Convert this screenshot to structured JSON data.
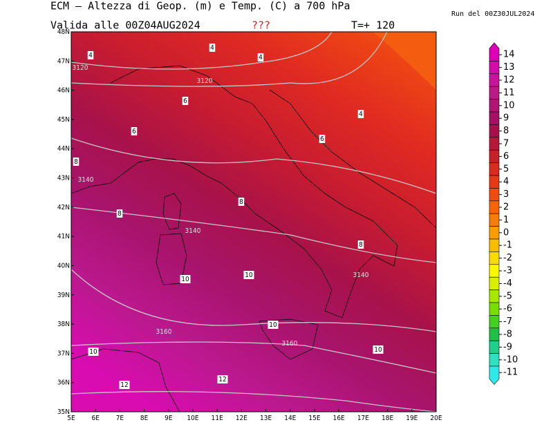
{
  "header": {
    "title": "ECM — Altezza di Geop. (m) e Temp. (C) a 700 hPa",
    "valid": "Valida alle 00Z04AUG2024",
    "flag": "???",
    "step": "T=+ 120",
    "run": "Run del 00Z30JUL2024"
  },
  "map": {
    "lat_labels": [
      "48N",
      "47N",
      "46N",
      "45N",
      "44N",
      "43N",
      "42N",
      "41N",
      "40N",
      "39N",
      "38N",
      "37N",
      "36N",
      "35N"
    ],
    "lon_labels": [
      "5E",
      "6E",
      "7E",
      "8E",
      "9E",
      "10E",
      "11E",
      "12E",
      "13E",
      "14E",
      "15E",
      "16E",
      "17E",
      "18E",
      "19E",
      "20E"
    ],
    "contour_labels": [
      "4",
      "3120",
      "4",
      "4",
      "3120",
      "6",
      "4",
      "6",
      "6",
      "8",
      "3140",
      "8",
      "8",
      "3140",
      "8",
      "10",
      "10",
      "3140",
      "10",
      "3160",
      "3160",
      "10",
      "10",
      "12",
      "12"
    ]
  },
  "colorbar": {
    "levels": [
      14,
      13,
      12,
      11,
      10,
      9,
      8,
      7,
      6,
      5,
      4,
      3,
      2,
      1,
      0,
      -1,
      -2,
      -3,
      -4,
      -5,
      -6,
      -7,
      -8,
      -9,
      -10,
      -11
    ],
    "colors": [
      "#e000b8",
      "#d40cac",
      "#c8149c",
      "#bc1888",
      "#b01474",
      "#a41064",
      "#a8104c",
      "#b81838",
      "#c82028",
      "#d82c20",
      "#e83818",
      "#f04c10",
      "#f86408",
      "#f87c08",
      "#f89c00",
      "#f8bc00",
      "#f8dc00",
      "#f8f800",
      "#d8f000",
      "#a8e800",
      "#78e000",
      "#44d020",
      "#20c048",
      "#20d088",
      "#30e0c0",
      "#30e8e8"
    ]
  }
}
